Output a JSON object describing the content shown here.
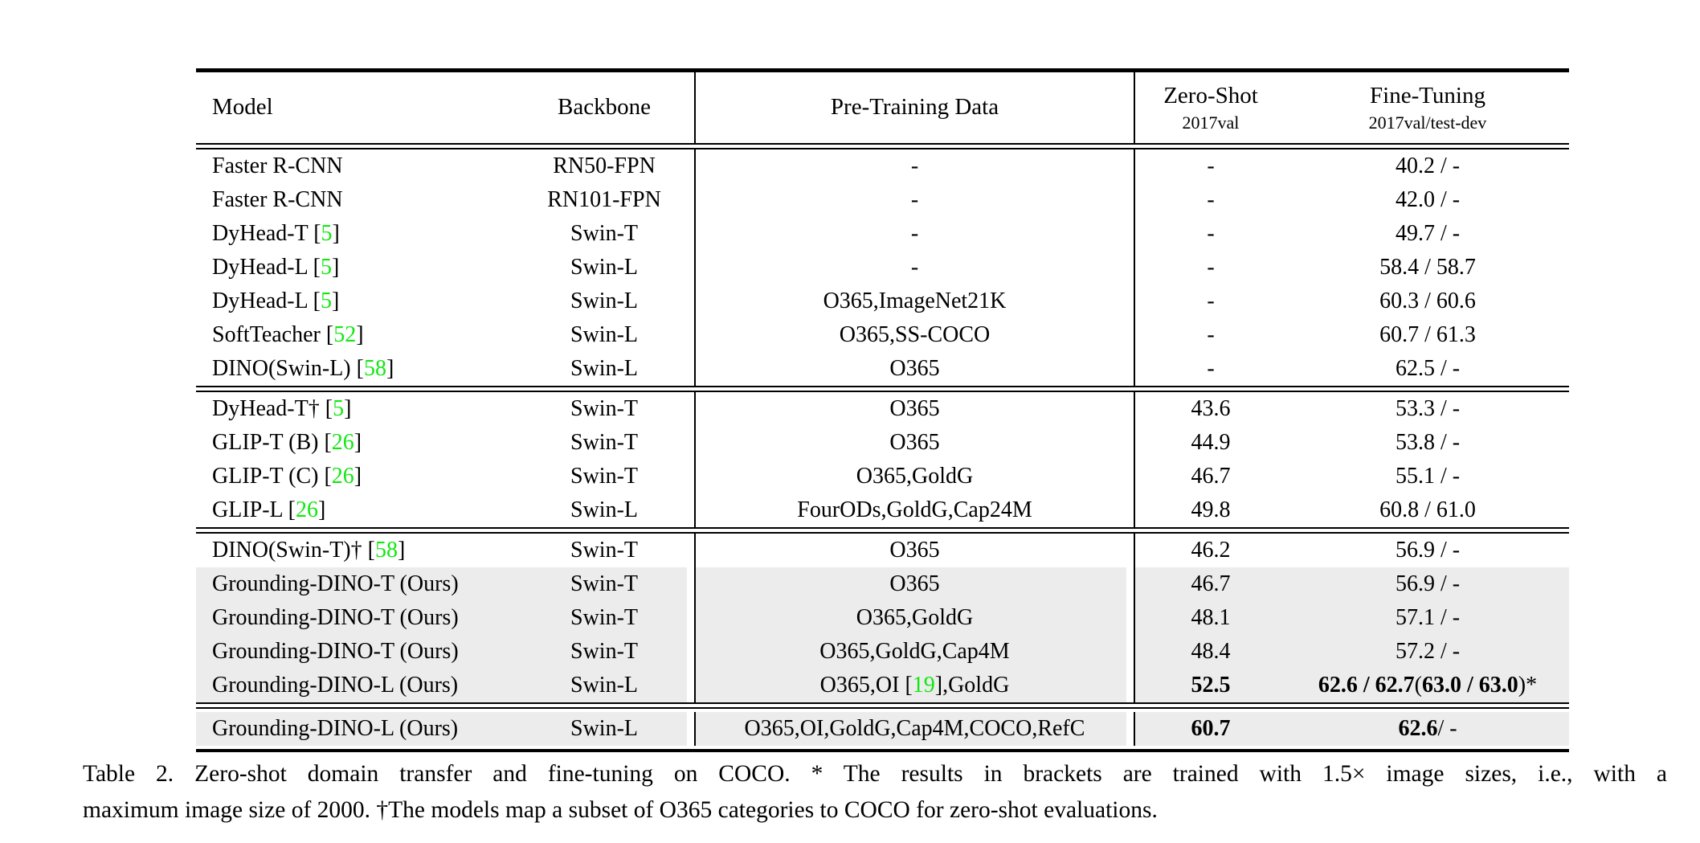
{
  "colors": {
    "citation_green": "#10e810",
    "row_highlight": "#ececec",
    "rule_black": "#000000"
  },
  "header": {
    "model": "Model",
    "backbone": "Backbone",
    "pretraining": "Pre-Training Data",
    "zeroshot": "Zero-Shot",
    "zeroshot_sub": "2017val",
    "finetuning": "Fine-Tuning",
    "finetuning_sub": "2017val/test-dev"
  },
  "blocks": [
    {
      "padded": false,
      "rows": [
        {
          "hl": false,
          "cells": [
            [
              {
                "t": "Faster R-CNN"
              }
            ],
            [
              {
                "t": "RN50-FPN"
              }
            ],
            [
              {
                "t": "-"
              }
            ],
            [
              {
                "t": "-"
              }
            ],
            [
              {
                "t": "40.2 / -"
              }
            ]
          ]
        },
        {
          "hl": false,
          "cells": [
            [
              {
                "t": "Faster R-CNN"
              }
            ],
            [
              {
                "t": "RN101-FPN"
              }
            ],
            [
              {
                "t": "-"
              }
            ],
            [
              {
                "t": "-"
              }
            ],
            [
              {
                "t": "42.0 / -"
              }
            ]
          ]
        },
        {
          "hl": false,
          "cells": [
            [
              {
                "t": "DyHead-T ["
              },
              {
                "t": "5",
                "green": true
              },
              {
                "t": "]"
              }
            ],
            [
              {
                "t": "Swin-T"
              }
            ],
            [
              {
                "t": "-"
              }
            ],
            [
              {
                "t": "-"
              }
            ],
            [
              {
                "t": "49.7 / -"
              }
            ]
          ]
        },
        {
          "hl": false,
          "cells": [
            [
              {
                "t": "DyHead-L ["
              },
              {
                "t": "5",
                "green": true
              },
              {
                "t": "]"
              }
            ],
            [
              {
                "t": "Swin-L"
              }
            ],
            [
              {
                "t": "-"
              }
            ],
            [
              {
                "t": "-"
              }
            ],
            [
              {
                "t": "58.4 / 58.7"
              }
            ]
          ]
        },
        {
          "hl": false,
          "cells": [
            [
              {
                "t": "DyHead-L ["
              },
              {
                "t": "5",
                "green": true
              },
              {
                "t": "]"
              }
            ],
            [
              {
                "t": "Swin-L"
              }
            ],
            [
              {
                "t": "O365,ImageNet21K"
              }
            ],
            [
              {
                "t": "-"
              }
            ],
            [
              {
                "t": "60.3 / 60.6"
              }
            ]
          ]
        },
        {
          "hl": false,
          "cells": [
            [
              {
                "t": "SoftTeacher ["
              },
              {
                "t": "52",
                "green": true
              },
              {
                "t": "]"
              }
            ],
            [
              {
                "t": "Swin-L"
              }
            ],
            [
              {
                "t": "O365,SS-COCO"
              }
            ],
            [
              {
                "t": "-"
              }
            ],
            [
              {
                "t": "60.7 / 61.3"
              }
            ]
          ]
        },
        {
          "hl": false,
          "cells": [
            [
              {
                "t": "DINO(Swin-L) ["
              },
              {
                "t": "58",
                "green": true
              },
              {
                "t": "]"
              }
            ],
            [
              {
                "t": "Swin-L"
              }
            ],
            [
              {
                "t": "O365"
              }
            ],
            [
              {
                "t": "-"
              }
            ],
            [
              {
                "t": "62.5 / -"
              }
            ]
          ]
        }
      ]
    },
    {
      "padded": false,
      "rows": [
        {
          "hl": false,
          "cells": [
            [
              {
                "t": "DyHead-T† ["
              },
              {
                "t": "5",
                "green": true
              },
              {
                "t": "]"
              }
            ],
            [
              {
                "t": "Swin-T"
              }
            ],
            [
              {
                "t": "O365"
              }
            ],
            [
              {
                "t": "43.6"
              }
            ],
            [
              {
                "t": "53.3 / -"
              }
            ]
          ]
        },
        {
          "hl": false,
          "cells": [
            [
              {
                "t": "GLIP-T (B) ["
              },
              {
                "t": "26",
                "green": true
              },
              {
                "t": "]"
              }
            ],
            [
              {
                "t": "Swin-T"
              }
            ],
            [
              {
                "t": "O365"
              }
            ],
            [
              {
                "t": "44.9"
              }
            ],
            [
              {
                "t": "53.8 / -"
              }
            ]
          ]
        },
        {
          "hl": false,
          "cells": [
            [
              {
                "t": "GLIP-T (C) ["
              },
              {
                "t": "26",
                "green": true
              },
              {
                "t": "]"
              }
            ],
            [
              {
                "t": "Swin-T"
              }
            ],
            [
              {
                "t": "O365,GoldG"
              }
            ],
            [
              {
                "t": "46.7"
              }
            ],
            [
              {
                "t": "55.1 / -"
              }
            ]
          ]
        },
        {
          "hl": false,
          "cells": [
            [
              {
                "t": "GLIP-L ["
              },
              {
                "t": "26",
                "green": true
              },
              {
                "t": "]"
              }
            ],
            [
              {
                "t": "Swin-L"
              }
            ],
            [
              {
                "t": "FourODs,GoldG,Cap24M"
              }
            ],
            [
              {
                "t": "49.8"
              }
            ],
            [
              {
                "t": "60.8 / 61.0"
              }
            ]
          ]
        }
      ]
    },
    {
      "padded": false,
      "rows": [
        {
          "hl": false,
          "cells": [
            [
              {
                "t": "DINO(Swin-T)† ["
              },
              {
                "t": "58",
                "green": true
              },
              {
                "t": "]"
              }
            ],
            [
              {
                "t": "Swin-T"
              }
            ],
            [
              {
                "t": "O365"
              }
            ],
            [
              {
                "t": "46.2"
              }
            ],
            [
              {
                "t": "56.9 / -"
              }
            ]
          ]
        },
        {
          "hl": true,
          "cells": [
            [
              {
                "t": "Grounding-DINO-T (Ours)"
              }
            ],
            [
              {
                "t": "Swin-T"
              }
            ],
            [
              {
                "t": "O365"
              }
            ],
            [
              {
                "t": "46.7"
              }
            ],
            [
              {
                "t": "56.9 / -"
              }
            ]
          ]
        },
        {
          "hl": true,
          "cells": [
            [
              {
                "t": "Grounding-DINO-T (Ours)"
              }
            ],
            [
              {
                "t": "Swin-T"
              }
            ],
            [
              {
                "t": "O365,GoldG"
              }
            ],
            [
              {
                "t": "48.1"
              }
            ],
            [
              {
                "t": "57.1 / -"
              }
            ]
          ]
        },
        {
          "hl": true,
          "cells": [
            [
              {
                "t": "Grounding-DINO-T (Ours)"
              }
            ],
            [
              {
                "t": "Swin-T"
              }
            ],
            [
              {
                "t": "O365,GoldG,Cap4M"
              }
            ],
            [
              {
                "t": "48.4"
              }
            ],
            [
              {
                "t": "57.2 / -"
              }
            ]
          ]
        },
        {
          "hl": true,
          "cells": [
            [
              {
                "t": "Grounding-DINO-L (Ours)"
              }
            ],
            [
              {
                "t": "Swin-L"
              }
            ],
            [
              {
                "t": "O365,OI ["
              },
              {
                "t": "19",
                "green": true
              },
              {
                "t": "],GoldG"
              }
            ],
            [
              {
                "t": "52.5",
                "bold": true
              }
            ],
            [
              {
                "t": "62.6 / 62.7 ",
                "bold": true
              },
              {
                "t": "("
              },
              {
                "t": "63.0 / 63.0",
                "bold": true
              },
              {
                "t": ")*"
              }
            ]
          ]
        }
      ]
    },
    {
      "padded": true,
      "rows": [
        {
          "hl": true,
          "cells": [
            [
              {
                "t": "Grounding-DINO-L (Ours)"
              }
            ],
            [
              {
                "t": "Swin-L"
              }
            ],
            [
              {
                "t": "O365,OI,GoldG,Cap4M,COCO,RefC"
              }
            ],
            [
              {
                "t": "60.7",
                "bold": true
              }
            ],
            [
              {
                "t": "62.6",
                "bold": true
              },
              {
                "t": " / -"
              }
            ]
          ]
        }
      ]
    }
  ],
  "caption": {
    "line1": "Table 2. Zero-shot domain transfer and fine-tuning on COCO. * The results in brackets are trained with 1.5× image sizes, i.e., with a",
    "line2": "maximum image size of 2000. †The models map a subset of O365 categories to COCO for zero-shot evaluations."
  }
}
